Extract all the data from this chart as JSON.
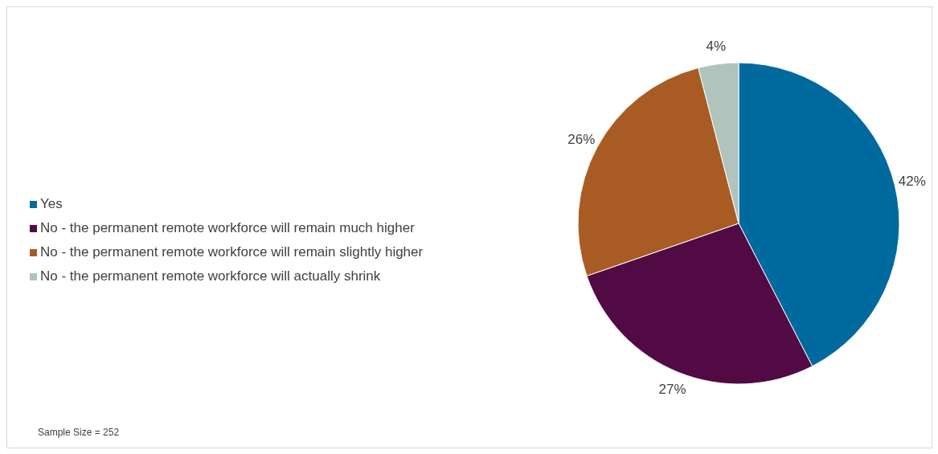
{
  "chart_data": {
    "type": "pie",
    "categories": [
      "Yes",
      "No - the permanent remote workforce will remain much higher",
      "No - the permanent remote workforce will remain slightly higher",
      "No - the permanent remote workforce will actually shrink"
    ],
    "values": [
      42,
      27,
      26,
      4
    ],
    "colors": [
      "#006a9e",
      "#520a45",
      "#a85c24",
      "#b0c4bd"
    ],
    "value_labels": [
      "42%",
      "27%",
      "26%",
      "4%"
    ],
    "legend": "left",
    "annotations": [
      "Sample Size = 252"
    ]
  }
}
